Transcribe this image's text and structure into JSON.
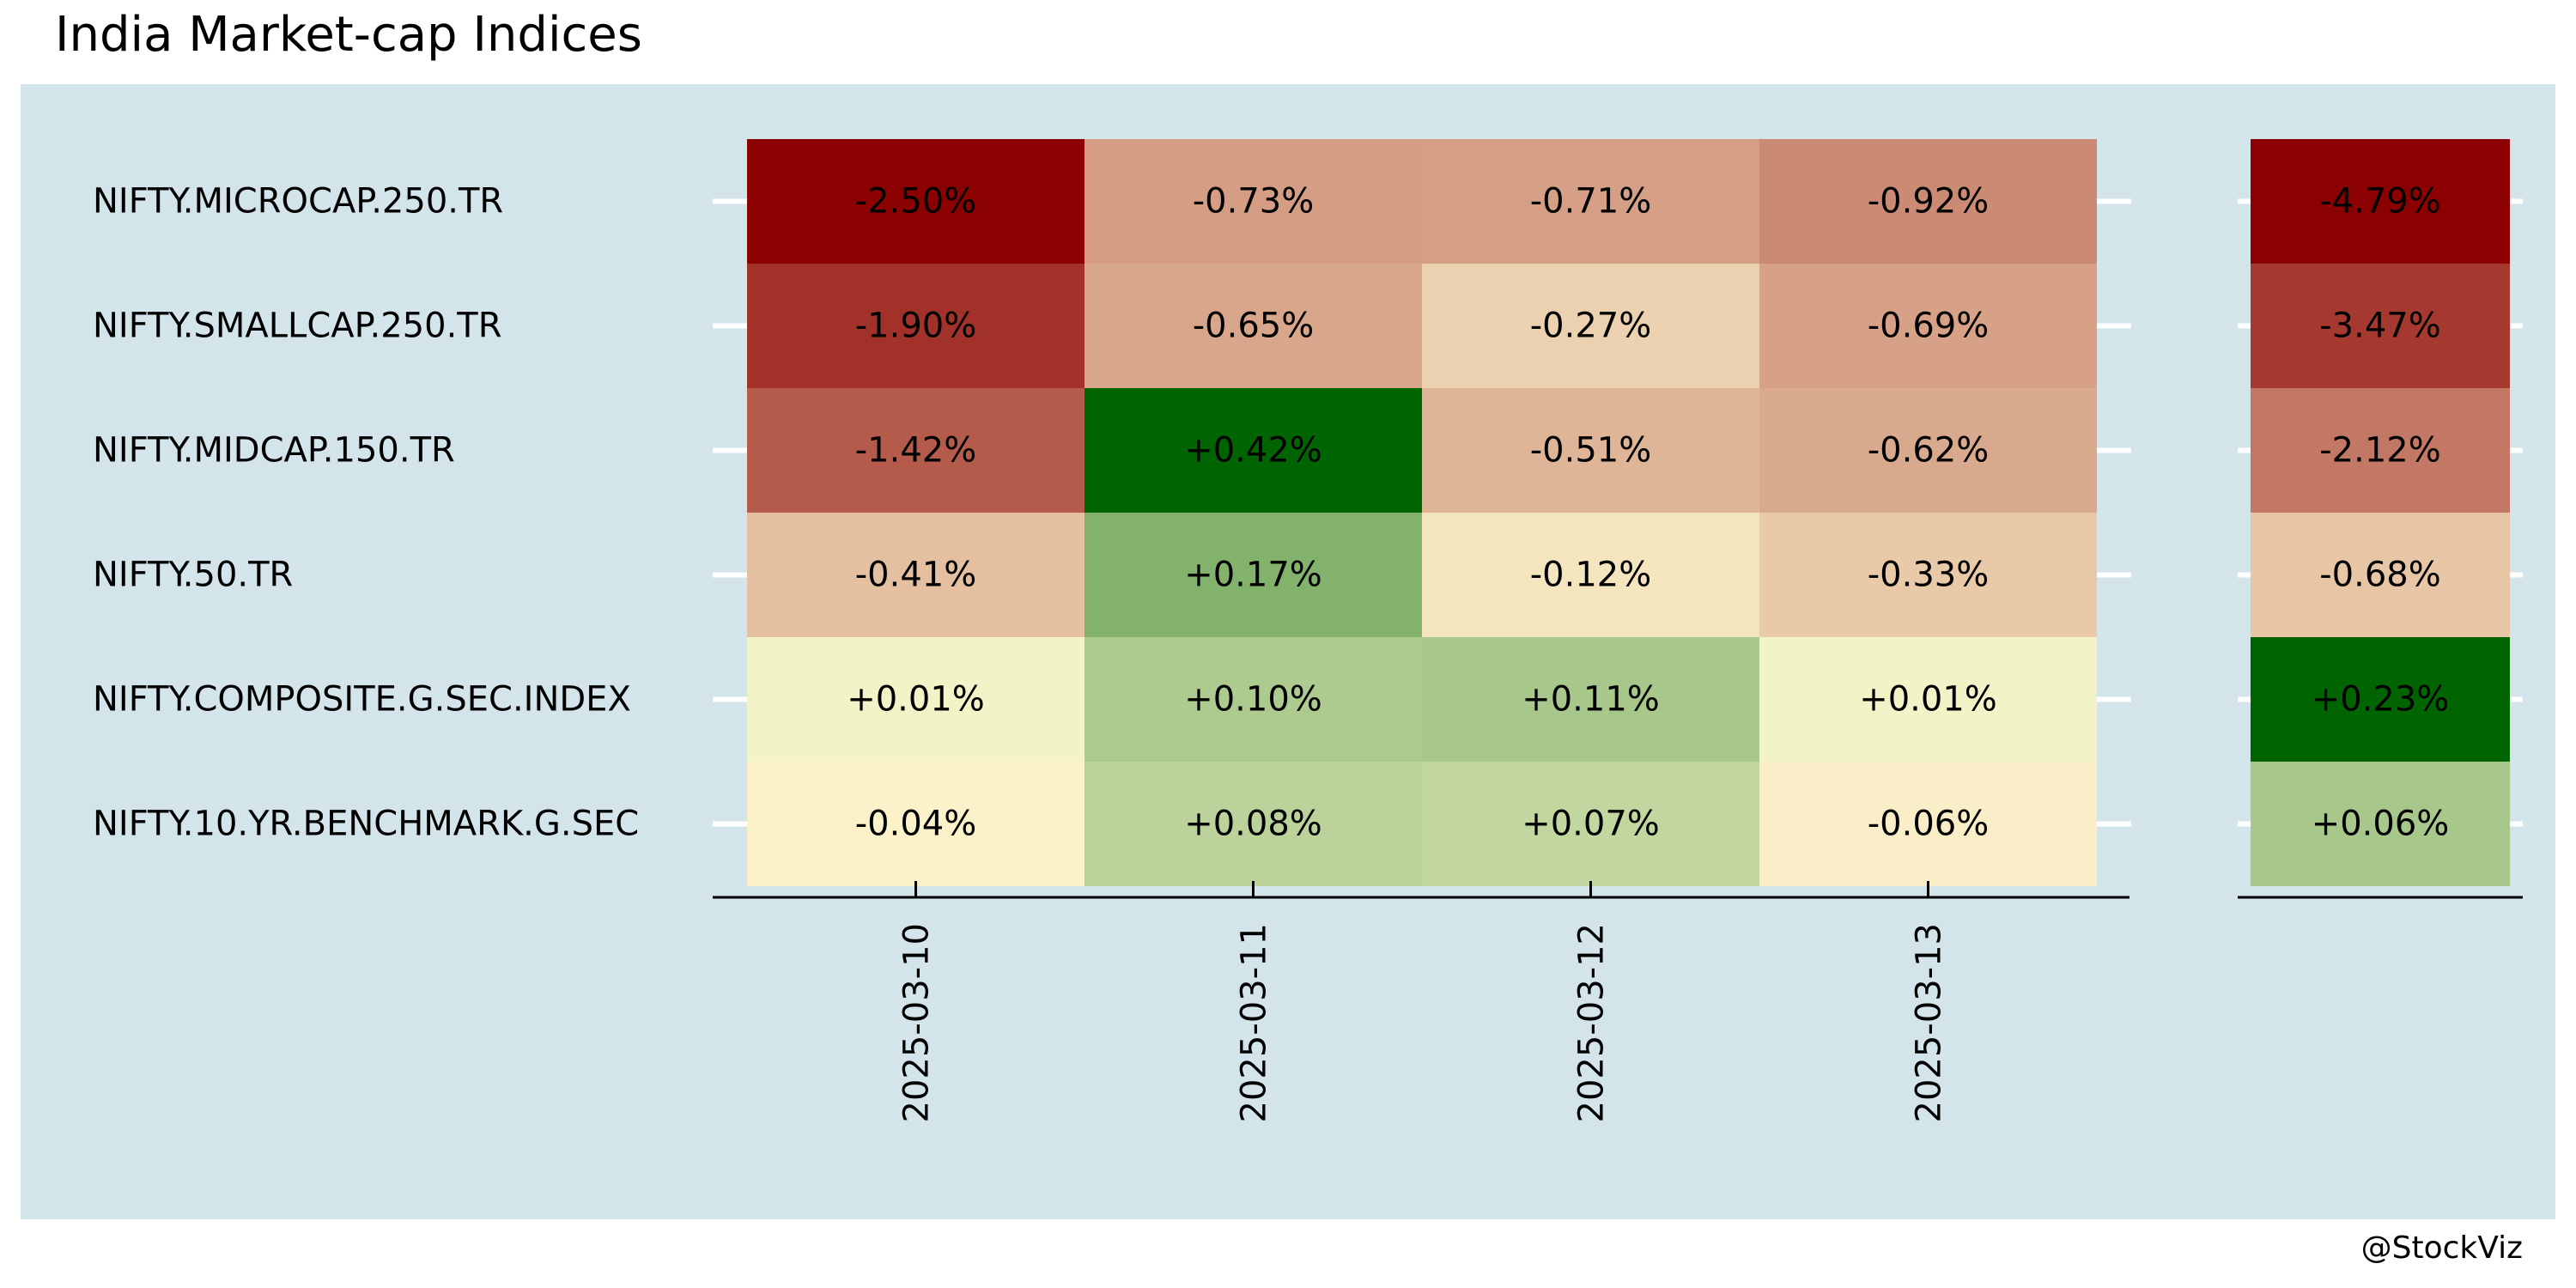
{
  "chart_data": {
    "type": "heatmap",
    "title": "India Market-cap Indices",
    "credit": "@StockViz",
    "rows": [
      "NIFTY.MICROCAP.250.TR",
      "NIFTY.SMALLCAP.250.TR",
      "NIFTY.MIDCAP.150.TR",
      "NIFTY.50.TR",
      "NIFTY.COMPOSITE.G.SEC.INDEX",
      "NIFTY.10.YR.BENCHMARK.G.SEC"
    ],
    "columns": [
      "2025-03-10",
      "2025-03-11",
      "2025-03-12",
      "2025-03-13"
    ],
    "values": [
      [
        -2.5,
        -0.73,
        -0.71,
        -0.92
      ],
      [
        -1.9,
        -0.65,
        -0.27,
        -0.69
      ],
      [
        -1.42,
        0.42,
        -0.51,
        -0.62
      ],
      [
        -0.41,
        0.17,
        -0.12,
        -0.33
      ],
      [
        0.01,
        0.1,
        0.11,
        0.01
      ],
      [
        -0.04,
        0.08,
        0.07,
        -0.06
      ]
    ],
    "labels": [
      [
        "-2.50%",
        "-0.73%",
        "-0.71%",
        "-0.92%"
      ],
      [
        "-1.90%",
        "-0.65%",
        "-0.27%",
        "-0.69%"
      ],
      [
        "-1.42%",
        "+0.42%",
        "-0.51%",
        "-0.62%"
      ],
      [
        "-0.41%",
        "+0.17%",
        "-0.12%",
        "-0.33%"
      ],
      [
        "+0.01%",
        "+0.10%",
        "+0.11%",
        "+0.01%"
      ],
      [
        "-0.04%",
        "+0.08%",
        "+0.07%",
        "-0.06%"
      ]
    ],
    "total_values": [
      -4.79,
      -3.47,
      -2.12,
      -0.68,
      0.23,
      0.06
    ],
    "total_labels": [
      "-4.79%",
      "-3.47%",
      "-2.12%",
      "-0.68%",
      "+0.23%",
      "+0.06%"
    ],
    "colors": {
      "panel_background": "#d4e4eb",
      "strong_negative": "#8b0000",
      "neutral": "#fffbd2",
      "strong_positive": "#006400",
      "tick": "#ffffff",
      "axis": "#000000"
    }
  }
}
